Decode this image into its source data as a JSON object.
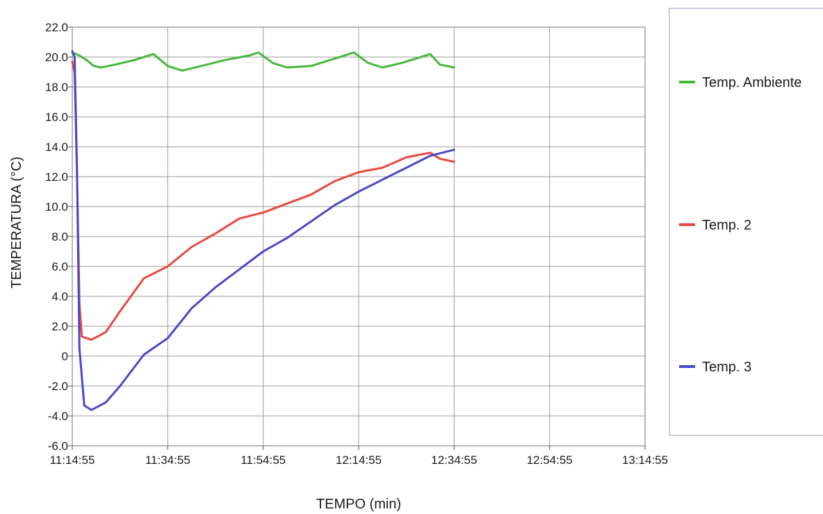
{
  "chart_data": {
    "type": "line",
    "title": "",
    "xlabel": "TEMPO (min)",
    "ylabel": "TEMPERATURA (°C)",
    "x_ticks": [
      "11:14:55",
      "11:34:55",
      "11:54:55",
      "12:14:55",
      "12:34:55",
      "12:54:55",
      "13:14:55"
    ],
    "x_range": [
      "11:14:55",
      "13:14:55"
    ],
    "y_ticks": [
      "22.0",
      "20.0",
      "18.0",
      "16.0",
      "14.0",
      "12.0",
      "10.0",
      "8.0",
      "6.0",
      "4.0",
      "2.0",
      "0",
      "-2.0",
      "-4.0",
      "-6.0"
    ],
    "ylim": [
      -6,
      22
    ],
    "grid": true,
    "legend_position": "right",
    "series": [
      {
        "name": "Temp. Ambiente",
        "color": "#44b83a",
        "points": [
          [
            "11:14:55",
            20.3
          ],
          [
            "11:16:25",
            20.1
          ],
          [
            "11:17:55",
            19.8
          ],
          [
            "11:19:25",
            19.4
          ],
          [
            "11:20:55",
            19.3
          ],
          [
            "11:23:55",
            19.5
          ],
          [
            "11:27:55",
            19.8
          ],
          [
            "11:31:55",
            20.2
          ],
          [
            "11:34:55",
            19.4
          ],
          [
            "11:37:55",
            19.1
          ],
          [
            "11:41:55",
            19.4
          ],
          [
            "11:46:55",
            19.8
          ],
          [
            "11:51:55",
            20.1
          ],
          [
            "11:53:55",
            20.3
          ],
          [
            "11:56:55",
            19.6
          ],
          [
            "11:59:55",
            19.3
          ],
          [
            "12:04:55",
            19.4
          ],
          [
            "12:09:55",
            19.9
          ],
          [
            "12:13:55",
            20.3
          ],
          [
            "12:16:55",
            19.6
          ],
          [
            "12:19:55",
            19.3
          ],
          [
            "12:23:55",
            19.6
          ],
          [
            "12:26:55",
            19.9
          ],
          [
            "12:29:55",
            20.2
          ],
          [
            "12:31:55",
            19.5
          ],
          [
            "12:34:55",
            19.3
          ]
        ]
      },
      {
        "name": "Temp. 2",
        "color": "#e8483c",
        "points": [
          [
            "11:14:55",
            19.7
          ],
          [
            "11:15:25",
            19.0
          ],
          [
            "11:15:55",
            12.0
          ],
          [
            "11:16:25",
            3.5
          ],
          [
            "11:16:55",
            1.3
          ],
          [
            "11:18:55",
            1.1
          ],
          [
            "11:21:55",
            1.6
          ],
          [
            "11:24:55",
            3.0
          ],
          [
            "11:29:55",
            5.2
          ],
          [
            "11:34:55",
            6.0
          ],
          [
            "11:39:55",
            7.3
          ],
          [
            "11:44:55",
            8.2
          ],
          [
            "11:49:55",
            9.2
          ],
          [
            "11:54:55",
            9.6
          ],
          [
            "11:59:55",
            10.2
          ],
          [
            "12:04:55",
            10.8
          ],
          [
            "12:09:55",
            11.7
          ],
          [
            "12:14:55",
            12.3
          ],
          [
            "12:19:55",
            12.6
          ],
          [
            "12:24:55",
            13.3
          ],
          [
            "12:29:55",
            13.6
          ],
          [
            "12:31:55",
            13.2
          ],
          [
            "12:34:55",
            13.0
          ]
        ]
      },
      {
        "name": "Temp. 3",
        "color": "#4b47c8",
        "points": [
          [
            "11:14:55",
            20.4
          ],
          [
            "11:15:25",
            20.0
          ],
          [
            "11:15:55",
            12.0
          ],
          [
            "11:16:25",
            0.5
          ],
          [
            "11:17:25",
            -3.3
          ],
          [
            "11:18:55",
            -3.6
          ],
          [
            "11:21:55",
            -3.1
          ],
          [
            "11:24:55",
            -2.0
          ],
          [
            "11:29:55",
            0.1
          ],
          [
            "11:34:55",
            1.2
          ],
          [
            "11:39:55",
            3.2
          ],
          [
            "11:44:55",
            4.6
          ],
          [
            "11:49:55",
            5.8
          ],
          [
            "11:54:55",
            7.0
          ],
          [
            "11:59:55",
            7.9
          ],
          [
            "12:04:55",
            9.0
          ],
          [
            "12:09:55",
            10.1
          ],
          [
            "12:14:55",
            11.0
          ],
          [
            "12:19:55",
            11.8
          ],
          [
            "12:24:55",
            12.6
          ],
          [
            "12:29:55",
            13.4
          ],
          [
            "12:34:55",
            13.8
          ]
        ]
      }
    ]
  }
}
